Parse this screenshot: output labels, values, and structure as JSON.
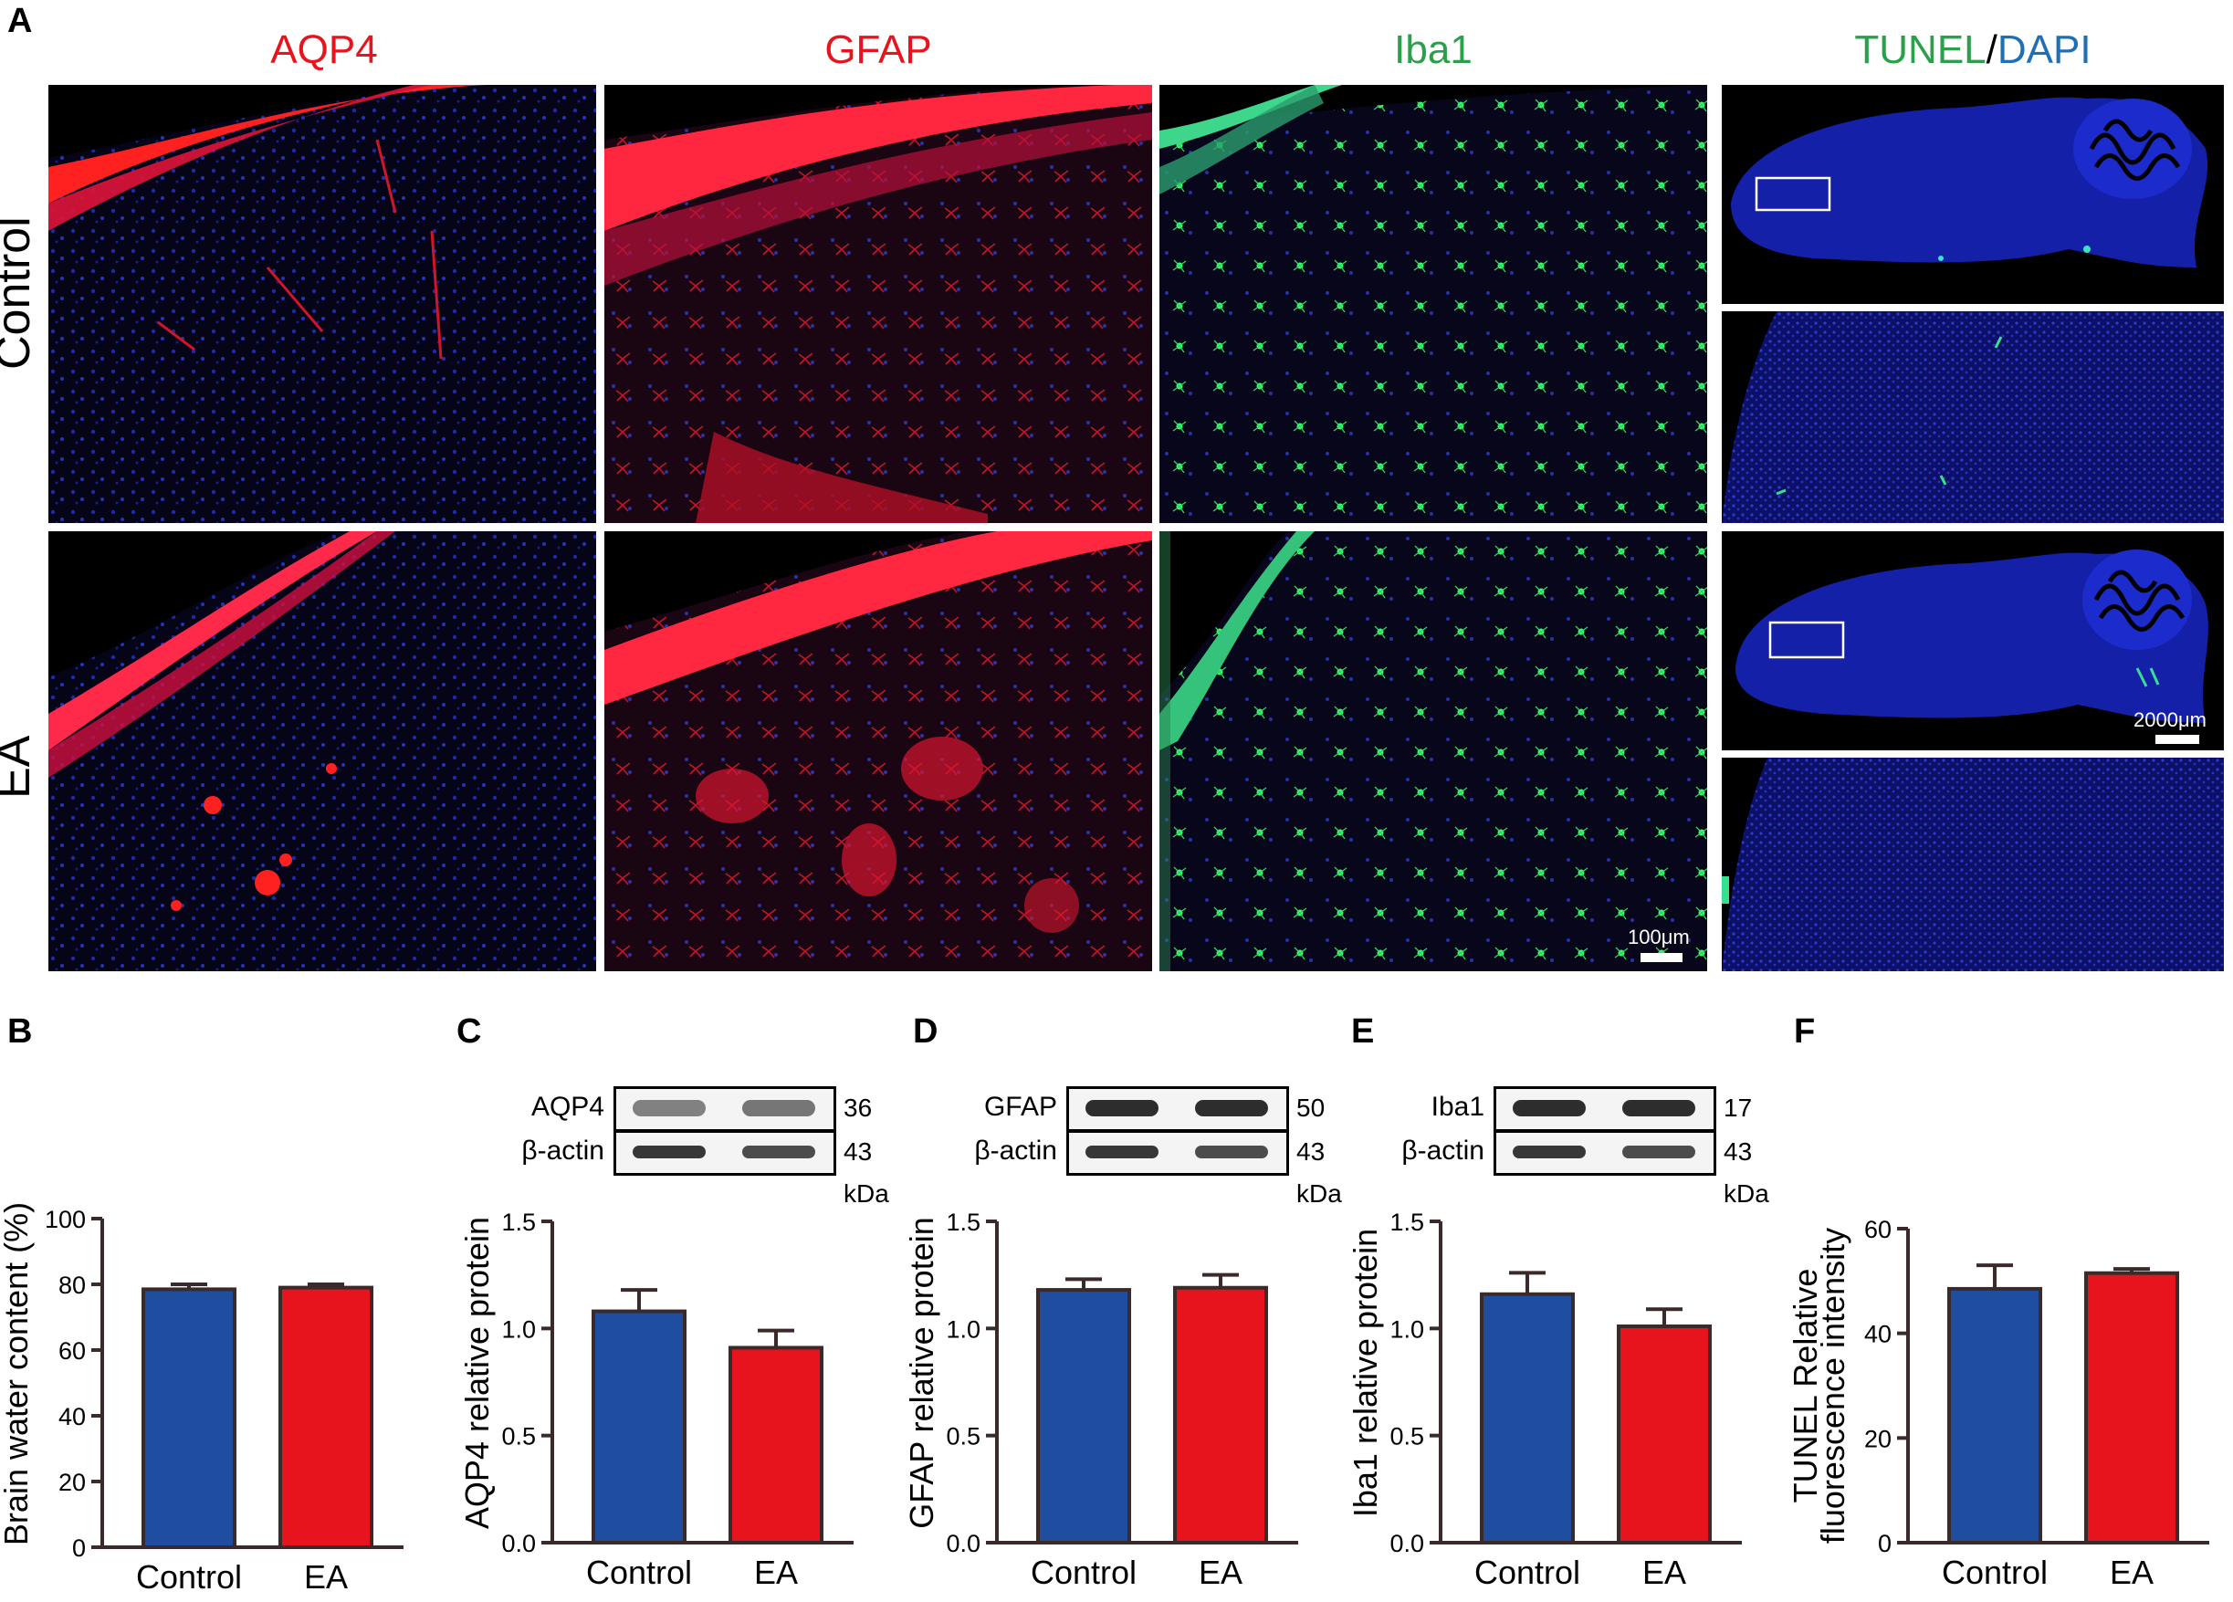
{
  "panel_A": {
    "letter": "A",
    "col_titles": [
      {
        "text": "AQP4",
        "color": "#e8141d"
      },
      {
        "text": "GFAP",
        "color": "#e8141d"
      },
      {
        "text": "Iba1",
        "color": "#2aa04a"
      }
    ],
    "tunel_title": {
      "part1": "TUNEL",
      "sep": "/",
      "part2": "DAPI",
      "color1": "#2aa04a",
      "color2": "#1f6fb5"
    },
    "rows": [
      "Control",
      "EA"
    ],
    "scale_100": "100μm",
    "scale_2000": "2000μm"
  },
  "western_blots": [
    {
      "letter": "C",
      "target": "AQP4",
      "target_kda": "36",
      "ref": "β-actin",
      "ref_kda": "43",
      "unit": "kDa"
    },
    {
      "letter": "D",
      "target": "GFAP",
      "target_kda": "50",
      "ref": "β-actin",
      "ref_kda": "43",
      "unit": "kDa"
    },
    {
      "letter": "E",
      "target": "Iba1",
      "target_kda": "17",
      "ref": "β-actin",
      "ref_kda": "43",
      "unit": "kDa"
    }
  ],
  "colors": {
    "control": "#1f4ea1",
    "ea": "#e8141d",
    "axis": "#3a2a2a"
  },
  "chart_data": [
    {
      "letter": "B",
      "type": "bar",
      "categories": [
        "Control",
        "EA"
      ],
      "values": [
        78.5,
        79.0
      ],
      "errors": [
        1.5,
        1.0
      ],
      "ylabel": "Brain water content (%)",
      "ylabel2": "",
      "ylim": [
        0,
        100
      ],
      "yticks": [
        "0",
        "20",
        "40",
        "60",
        "80",
        "100"
      ]
    },
    {
      "letter": "C",
      "type": "bar",
      "categories": [
        "Control",
        "EA"
      ],
      "values": [
        1.08,
        0.91
      ],
      "errors": [
        0.1,
        0.08
      ],
      "ylabel": "AQP4 relative protein",
      "ylabel2": "",
      "ylim": [
        0,
        1.5
      ],
      "yticks": [
        "0.0",
        "0.5",
        "1.0",
        "1.5"
      ]
    },
    {
      "letter": "D",
      "type": "bar",
      "categories": [
        "Control",
        "EA"
      ],
      "values": [
        1.18,
        1.19
      ],
      "errors": [
        0.05,
        0.06
      ],
      "ylabel": "GFAP relative protein",
      "ylabel2": "",
      "ylim": [
        0,
        1.5
      ],
      "yticks": [
        "0.0",
        "0.5",
        "1.0",
        "1.5"
      ]
    },
    {
      "letter": "E",
      "type": "bar",
      "categories": [
        "Control",
        "EA"
      ],
      "values": [
        1.16,
        1.01
      ],
      "errors": [
        0.1,
        0.08
      ],
      "ylabel": "Iba1 relative protein",
      "ylabel2": "",
      "ylim": [
        0,
        1.5
      ],
      "yticks": [
        "0.0",
        "0.5",
        "1.0",
        "1.5"
      ]
    },
    {
      "letter": "F",
      "type": "bar",
      "categories": [
        "Control",
        "EA"
      ],
      "values": [
        48.5,
        51.5
      ],
      "errors": [
        4.5,
        0.8
      ],
      "ylabel": "TUNEL Relative",
      "ylabel2": "fluorescence intensity",
      "ylim": [
        0,
        60
      ],
      "yticks": [
        "0",
        "20",
        "40",
        "60"
      ]
    }
  ]
}
